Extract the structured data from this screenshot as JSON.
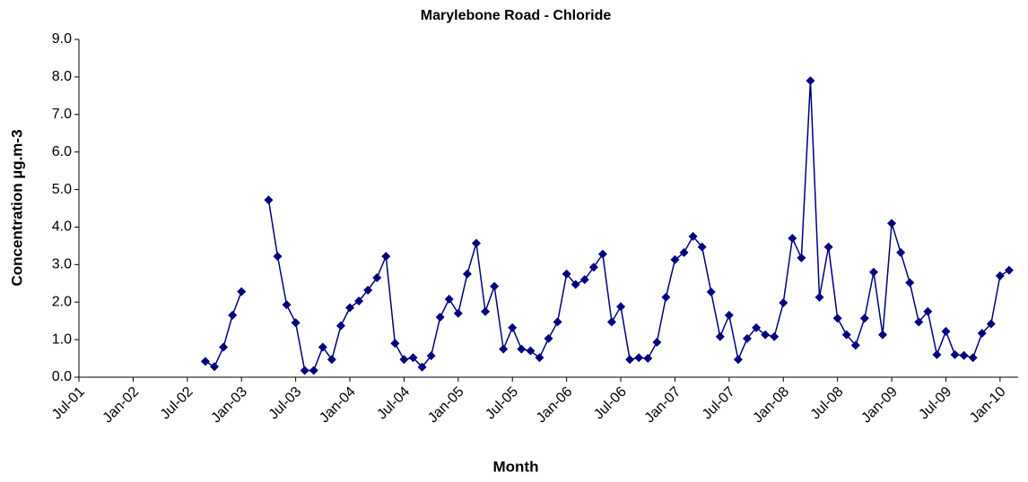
{
  "chart_data": {
    "type": "line",
    "title": "Marylebone Road - Chloride",
    "x_label": "Month",
    "y_label": "Concentration  µg.m-3",
    "x": [
      "2002-09",
      "2002-10",
      "2002-11",
      "2002-12",
      "2003-01",
      "2003-02",
      "2003-03",
      "2003-04",
      "2003-05",
      "2003-06",
      "2003-07",
      "2003-08",
      "2003-09",
      "2003-10",
      "2003-11",
      "2003-12",
      "2004-01",
      "2004-02",
      "2004-03",
      "2004-04",
      "2004-05",
      "2004-06",
      "2004-07",
      "2004-08",
      "2004-09",
      "2004-10",
      "2004-11",
      "2004-12",
      "2005-01",
      "2005-02",
      "2005-03",
      "2005-04",
      "2005-05",
      "2005-06",
      "2005-07",
      "2005-08",
      "2005-09",
      "2005-10",
      "2005-11",
      "2005-12",
      "2006-01",
      "2006-02",
      "2006-03",
      "2006-04",
      "2006-05",
      "2006-06",
      "2006-07",
      "2006-08",
      "2006-09",
      "2006-10",
      "2006-11",
      "2006-12",
      "2007-01",
      "2007-02",
      "2007-03",
      "2007-04",
      "2007-05",
      "2007-06",
      "2007-07",
      "2007-08",
      "2007-09",
      "2007-10",
      "2007-11",
      "2007-12",
      "2008-01",
      "2008-02",
      "2008-03",
      "2008-04",
      "2008-05",
      "2008-06",
      "2008-07",
      "2008-08",
      "2008-09",
      "2008-10",
      "2008-11",
      "2008-12",
      "2009-01",
      "2009-02",
      "2009-03",
      "2009-04",
      "2009-05",
      "2009-06",
      "2009-07",
      "2009-08",
      "2009-09",
      "2009-10",
      "2009-11",
      "2009-12",
      "2010-01",
      "2010-02"
    ],
    "series": [
      {
        "name": "Chloride",
        "color": "#000080",
        "values": [
          0.42,
          0.28,
          0.8,
          1.65,
          2.28,
          null,
          null,
          4.72,
          3.22,
          1.93,
          1.45,
          0.18,
          0.18,
          0.8,
          0.47,
          1.37,
          1.85,
          2.03,
          2.32,
          2.65,
          3.22,
          0.9,
          0.47,
          0.52,
          0.27,
          0.57,
          1.6,
          2.08,
          1.7,
          2.75,
          3.57,
          1.75,
          2.42,
          0.75,
          1.32,
          0.75,
          0.7,
          0.52,
          1.03,
          1.47,
          2.75,
          2.47,
          2.6,
          2.93,
          3.28,
          1.47,
          1.88,
          0.47,
          0.52,
          0.5,
          0.93,
          2.13,
          3.13,
          3.32,
          3.75,
          3.47,
          2.27,
          1.08,
          1.65,
          0.47,
          1.03,
          1.32,
          1.13,
          1.08,
          1.98,
          3.7,
          3.18,
          7.9,
          2.13,
          3.47,
          1.57,
          1.13,
          0.85,
          1.57,
          2.8,
          1.13,
          4.1,
          3.32,
          2.52,
          1.47,
          1.75,
          0.6,
          1.22,
          0.6,
          0.58,
          0.52,
          1.17,
          1.42,
          2.7,
          2.85
        ]
      }
    ],
    "xlim": [
      "2001-07",
      "2010-03"
    ],
    "xticks": [
      {
        "value": "2001-07",
        "label": "Jul-01"
      },
      {
        "value": "2002-01",
        "label": "Jan-02"
      },
      {
        "value": "2002-07",
        "label": "Jul-02"
      },
      {
        "value": "2003-01",
        "label": "Jan-03"
      },
      {
        "value": "2003-07",
        "label": "Jul-03"
      },
      {
        "value": "2004-01",
        "label": "Jan-04"
      },
      {
        "value": "2004-07",
        "label": "Jul-04"
      },
      {
        "value": "2005-01",
        "label": "Jan-05"
      },
      {
        "value": "2005-07",
        "label": "Jul-05"
      },
      {
        "value": "2006-01",
        "label": "Jan-06"
      },
      {
        "value": "2006-07",
        "label": "Jul-06"
      },
      {
        "value": "2007-01",
        "label": "Jan-07"
      },
      {
        "value": "2007-07",
        "label": "Jul-07"
      },
      {
        "value": "2008-01",
        "label": "Jan-08"
      },
      {
        "value": "2008-07",
        "label": "Jul-08"
      },
      {
        "value": "2009-01",
        "label": "Jan-09"
      },
      {
        "value": "2009-07",
        "label": "Jul-09"
      },
      {
        "value": "2010-01",
        "label": "Jan-10"
      }
    ],
    "ylim": [
      0,
      9
    ],
    "yticks": [
      {
        "value": 0,
        "label": "0.0"
      },
      {
        "value": 1,
        "label": "1.0"
      },
      {
        "value": 2,
        "label": "2.0"
      },
      {
        "value": 3,
        "label": "3.0"
      },
      {
        "value": 4,
        "label": "4.0"
      },
      {
        "value": 5,
        "label": "5.0"
      },
      {
        "value": 6,
        "label": "6.0"
      },
      {
        "value": 7,
        "label": "7.0"
      },
      {
        "value": 8,
        "label": "8.0"
      },
      {
        "value": 9,
        "label": "9.0"
      }
    ],
    "grid": false,
    "marker": "diamond"
  }
}
